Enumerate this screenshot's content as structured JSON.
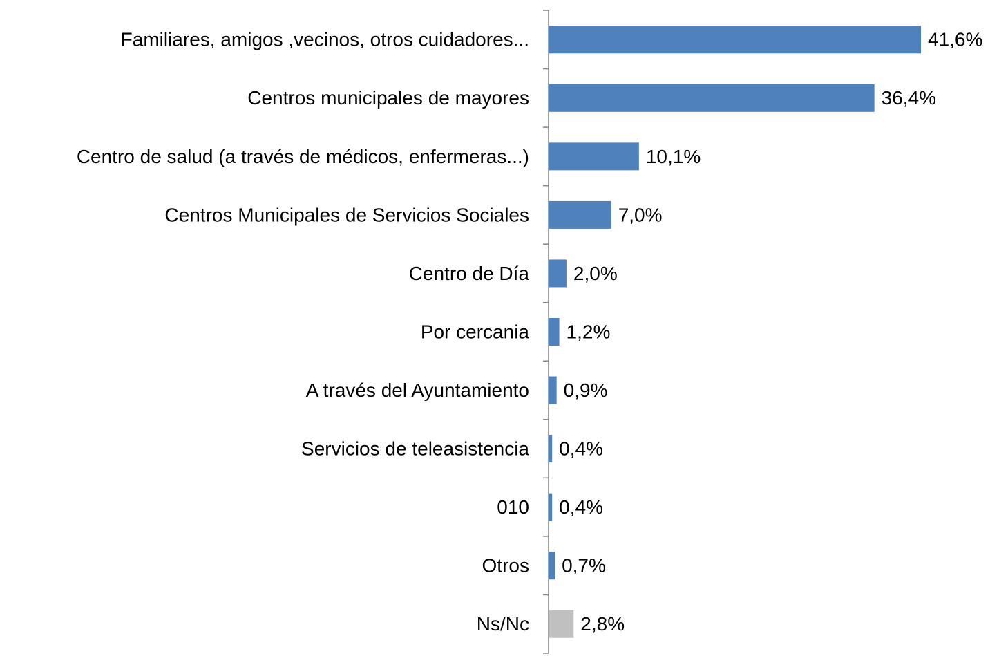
{
  "chart_data": {
    "type": "bar",
    "orientation": "horizontal",
    "categories": [
      "Familiares, amigos ,vecinos, otros cuidadores...",
      "Centros municipales de mayores",
      "Centro de salud (a través de médicos, enfermeras...)",
      "Centros Municipales de Servicios Sociales",
      "Centro de Día",
      "Por cercania",
      "A través del Ayuntamiento",
      "Servicios de teleasistencia",
      "010",
      "Otros",
      "Ns/Nc"
    ],
    "values": [
      41.6,
      36.4,
      10.1,
      7.0,
      2.0,
      1.2,
      0.9,
      0.4,
      0.4,
      0.7,
      2.8
    ],
    "value_labels": [
      "41,6%",
      "36,4%",
      "10,1%",
      "7,0%",
      "2,0%",
      "1,2%",
      "0,9%",
      "0,4%",
      "0,4%",
      "0,7%",
      "2,8%"
    ],
    "colors": [
      "#4f81bd",
      "#4f81bd",
      "#4f81bd",
      "#4f81bd",
      "#4f81bd",
      "#4f81bd",
      "#4f81bd",
      "#4f81bd",
      "#4f81bd",
      "#4f81bd",
      "#c0c0c0"
    ]
  }
}
